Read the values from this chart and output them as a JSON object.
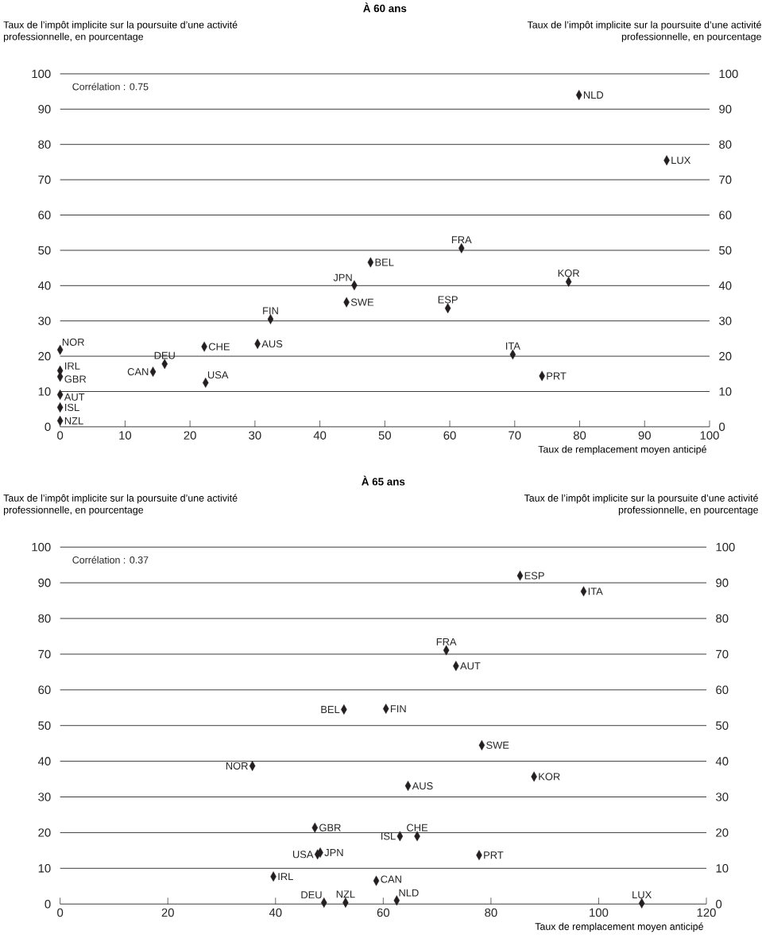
{
  "chart_data": [
    {
      "type": "scatter",
      "title": "À 60 ans",
      "xlabel": "Taux de remplacement moyen anticipé",
      "ylabel": "Taux de l’impôt implicite sur la poursuite d’une activité professionnelle, en pourcentage",
      "y2label": "Taux de l’impôt implicite sur la poursuite d’une activité professionnelle, en pourcentage",
      "x": [
        0,
        0,
        0,
        0,
        0,
        0,
        14.3,
        16.1,
        22.2,
        22.4,
        30.4,
        32.4,
        44.1,
        45.3,
        47.8,
        59.7,
        61.8,
        69.7,
        74.2,
        78.3,
        79.9,
        93.4
      ],
      "values": [
        21.8,
        15.9,
        14.2,
        9.1,
        5.5,
        1.7,
        15.6,
        17.8,
        22.7,
        12.5,
        23.5,
        30.5,
        35.3,
        40.1,
        46.6,
        33.6,
        50.6,
        20.5,
        14.4,
        41.1,
        94.0,
        75.5
      ],
      "color": "#231f20",
      "marker": "diamond",
      "grid": "y",
      "xlim": [
        0,
        100
      ],
      "xticks": [
        0,
        10,
        20,
        30,
        40,
        50,
        60,
        70,
        80,
        90,
        100
      ],
      "ylim": [
        0,
        100
      ],
      "yticks": [
        0,
        10,
        20,
        30,
        40,
        50,
        60,
        70,
        80,
        90,
        100
      ],
      "y2lim": [
        0,
        100
      ],
      "y2ticks": [
        0,
        10,
        20,
        30,
        40,
        50,
        60,
        70,
        80,
        90,
        100
      ],
      "annotations": [
        "Corrélation : 0.75",
        {
          "text": "NOR",
          "x": 0,
          "y": 21.8
        },
        {
          "text": "IRL",
          "x": 0,
          "y": 15.9
        },
        {
          "text": "GBR",
          "x": 0,
          "y": 14.2
        },
        {
          "text": "AUT",
          "x": 0,
          "y": 9.1
        },
        {
          "text": "ISL",
          "x": 0,
          "y": 5.5
        },
        {
          "text": "NZL",
          "x": 0,
          "y": 1.7
        },
        {
          "text": "CAN",
          "x": 14.3,
          "y": 15.6
        },
        {
          "text": "DEU",
          "x": 16.1,
          "y": 17.8
        },
        {
          "text": "CHE",
          "x": 22.2,
          "y": 22.7
        },
        {
          "text": "USA",
          "x": 22.4,
          "y": 12.5
        },
        {
          "text": "AUS",
          "x": 30.4,
          "y": 23.5
        },
        {
          "text": "FIN",
          "x": 32.4,
          "y": 30.5
        },
        {
          "text": "SWE",
          "x": 44.1,
          "y": 35.3
        },
        {
          "text": "JPN",
          "x": 45.3,
          "y": 40.1
        },
        {
          "text": "BEL",
          "x": 47.8,
          "y": 46.6
        },
        {
          "text": "ESP",
          "x": 59.7,
          "y": 33.6
        },
        {
          "text": "FRA",
          "x": 61.8,
          "y": 50.6
        },
        {
          "text": "ITA",
          "x": 69.7,
          "y": 20.5
        },
        {
          "text": "PRT",
          "x": 74.2,
          "y": 14.4
        },
        {
          "text": "KOR",
          "x": 78.3,
          "y": 41.1
        },
        {
          "text": "NLD",
          "x": 79.9,
          "y": 94.0
        },
        {
          "text": "LUX",
          "x": 93.4,
          "y": 75.5
        }
      ]
    },
    {
      "type": "scatter",
      "title": "À 65 ans",
      "xlabel": "Taux de remplacement moyen anticipé",
      "ylabel": "Taux de l’impôt implicite sur la poursuite d’une activité professionnelle, en pourcentage",
      "y2label": "Taux de l’impôt implicite sur la poursuite d’une activité professionnelle, en pourcentage",
      "x": [
        35.7,
        39.6,
        47.3,
        47.8,
        48.3,
        49.0,
        52.7,
        53.0,
        58.7,
        60.5,
        62.5,
        63.1,
        64.6,
        66.3,
        71.7,
        73.5,
        77.8,
        78.3,
        85.4,
        88.0,
        97.2,
        108.0
      ],
      "values": [
        38.7,
        7.7,
        21.4,
        13.9,
        14.4,
        0.4,
        54.5,
        0.4,
        6.5,
        54.7,
        1.0,
        19.0,
        33.1,
        19.0,
        71.1,
        66.7,
        13.7,
        44.5,
        92.0,
        35.7,
        87.6,
        0.2
      ],
      "color": "#231f20",
      "marker": "diamond",
      "grid": "y",
      "xlim": [
        0,
        120
      ],
      "xticks": [
        0,
        20,
        40,
        60,
        80,
        100,
        120
      ],
      "ylim": [
        0,
        100
      ],
      "yticks": [
        0,
        10,
        20,
        30,
        40,
        50,
        60,
        70,
        80,
        90,
        100
      ],
      "y2lim": [
        0,
        100
      ],
      "y2ticks": [
        0,
        10,
        20,
        30,
        40,
        50,
        60,
        70,
        80,
        90,
        100
      ],
      "annotations": [
        "Corrélation : 0.37",
        {
          "text": "NOR",
          "x": 35.7,
          "y": 38.7
        },
        {
          "text": "IRL",
          "x": 39.6,
          "y": 7.7
        },
        {
          "text": "GBR",
          "x": 47.3,
          "y": 21.4
        },
        {
          "text": "USA",
          "x": 47.8,
          "y": 13.9
        },
        {
          "text": "JPN",
          "x": 48.3,
          "y": 14.4
        },
        {
          "text": "DEU",
          "x": 49.0,
          "y": 0.4
        },
        {
          "text": "BEL",
          "x": 52.7,
          "y": 54.5
        },
        {
          "text": "NZL",
          "x": 53.0,
          "y": 0.4
        },
        {
          "text": "CAN",
          "x": 58.7,
          "y": 6.5
        },
        {
          "text": "FIN",
          "x": 60.5,
          "y": 54.7
        },
        {
          "text": "NLD",
          "x": 62.5,
          "y": 1.0
        },
        {
          "text": "ISL",
          "x": 63.1,
          "y": 19.0
        },
        {
          "text": "AUS",
          "x": 64.6,
          "y": 33.1
        },
        {
          "text": "CHE",
          "x": 66.3,
          "y": 19.0
        },
        {
          "text": "FRA",
          "x": 71.7,
          "y": 71.1
        },
        {
          "text": "AUT",
          "x": 73.5,
          "y": 66.7
        },
        {
          "text": "PRT",
          "x": 77.8,
          "y": 13.7
        },
        {
          "text": "SWE",
          "x": 78.3,
          "y": 44.5
        },
        {
          "text": "ESP",
          "x": 85.4,
          "y": 92.0
        },
        {
          "text": "KOR",
          "x": 88.0,
          "y": 35.7
        },
        {
          "text": "ITA",
          "x": 97.2,
          "y": 87.6
        },
        {
          "text": "LUX",
          "x": 108.0,
          "y": 0.2
        }
      ]
    }
  ]
}
